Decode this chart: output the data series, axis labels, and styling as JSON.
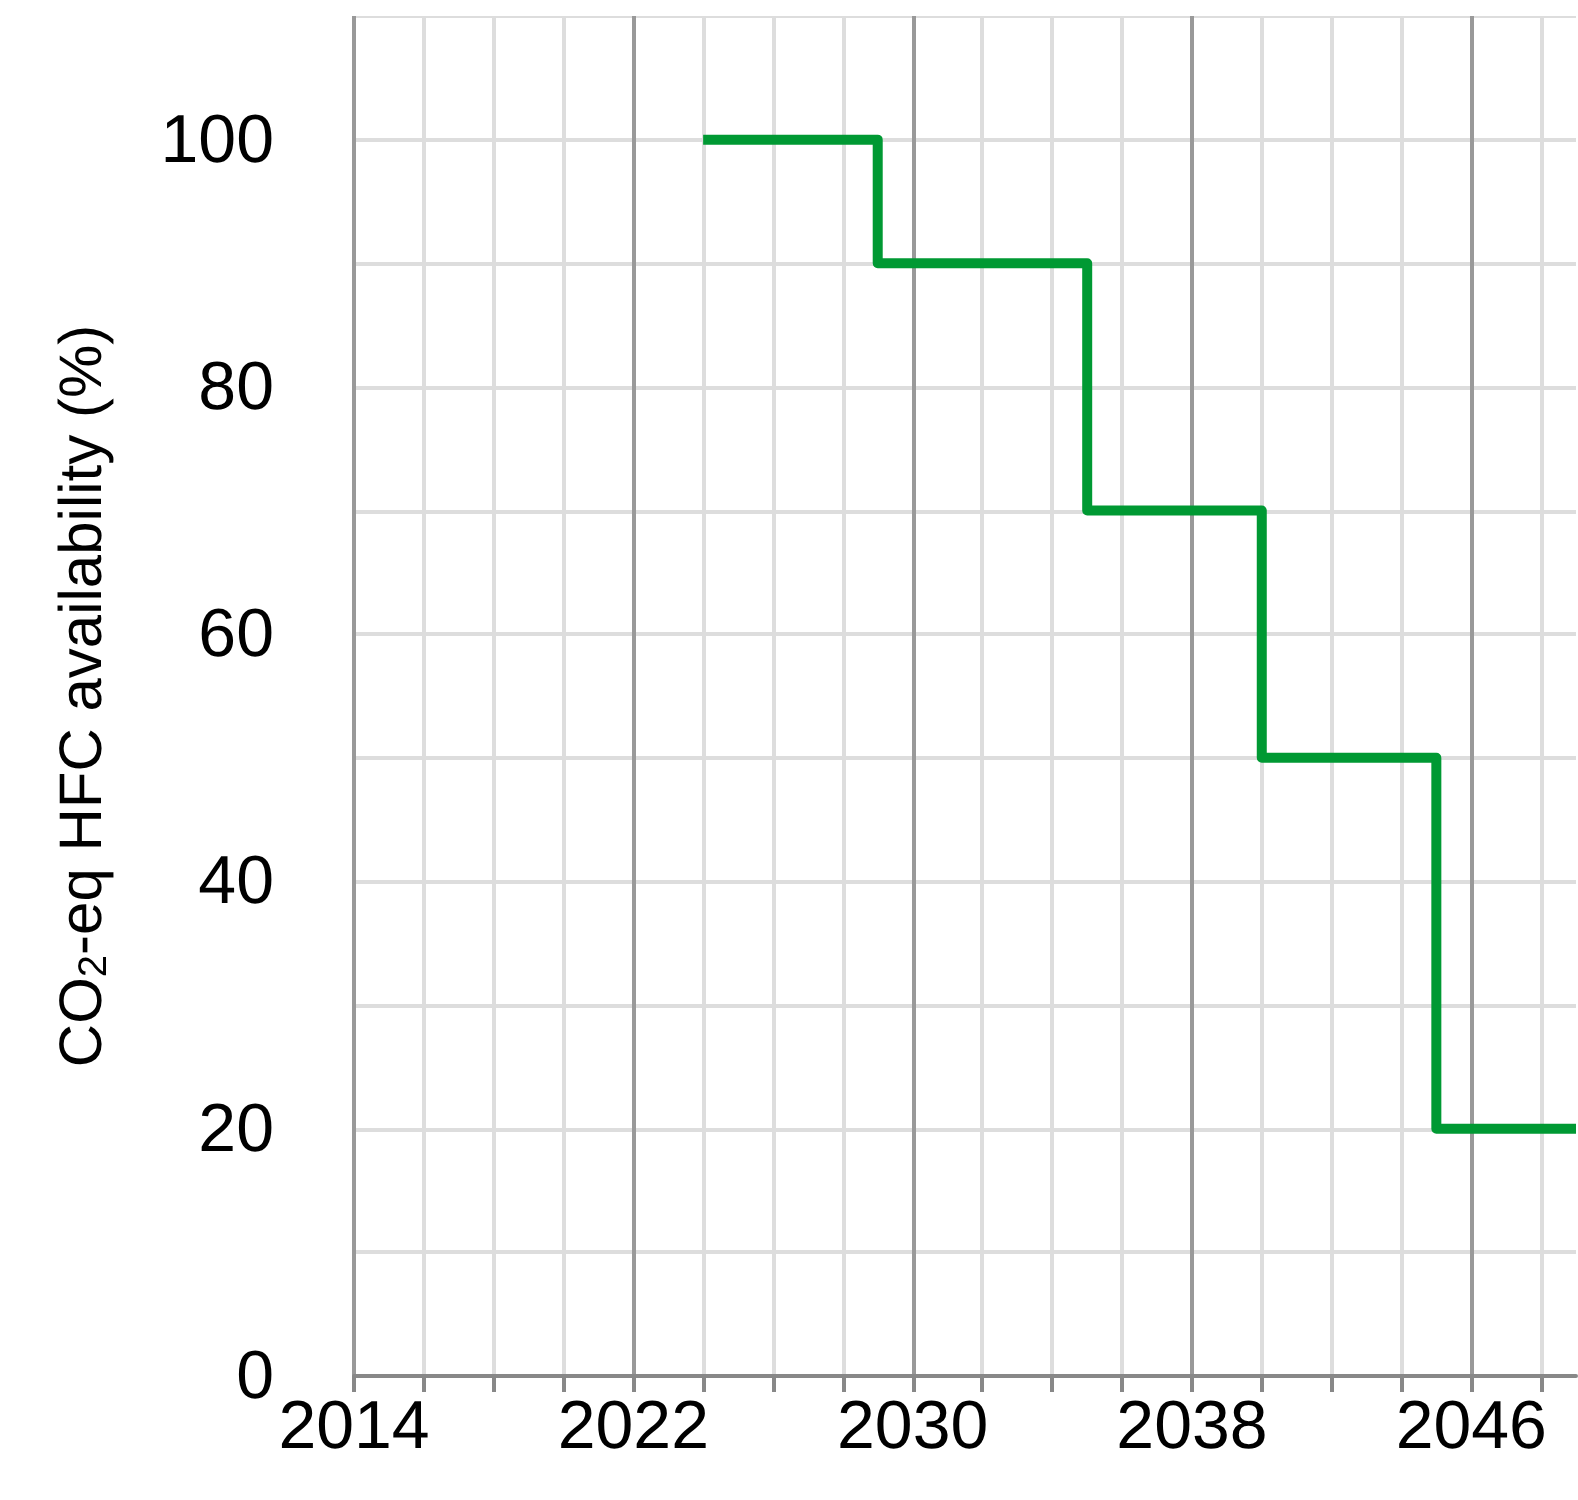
{
  "chart_data": {
    "type": "step",
    "ylabel": "CO$_{2}$-eq HFC availability (%)",
    "x": [
      2024,
      2029,
      2035,
      2040,
      2045,
      2049
    ],
    "series": [
      {
        "color": "#009933",
        "values": [
          100,
          90,
          70,
          50,
          20,
          20
        ]
      }
    ],
    "xlim": [
      2014,
      2049
    ],
    "xticks": [
      2014,
      {
        "value": 2016,
        "label": null
      },
      {
        "value": 2018,
        "label": null
      },
      {
        "value": 2020,
        "label": null
      },
      2022,
      {
        "value": 2024,
        "label": null
      },
      {
        "value": 2026,
        "label": null
      },
      {
        "value": 2028,
        "label": null
      },
      2030,
      {
        "value": 2032,
        "label": null
      },
      {
        "value": 2034,
        "label": null
      },
      {
        "value": 2036,
        "label": null
      },
      2038,
      {
        "value": 2040,
        "label": null
      },
      {
        "value": 2042,
        "label": null
      },
      {
        "value": 2044,
        "label": null
      },
      2046,
      {
        "value": 2048,
        "label": null
      }
    ],
    "ylim": [
      0,
      110
    ],
    "yticks": [
      0,
      {
        "value": 10,
        "label": null
      },
      20,
      {
        "value": 30,
        "label": null
      },
      40,
      {
        "value": 50,
        "label": null
      },
      60,
      {
        "value": 70,
        "label": null
      },
      80,
      {
        "value": 90,
        "label": null
      },
      100,
      {
        "value": 110,
        "label": null
      }
    ],
    "grid": true,
    "marker": "none",
    "line_style": "solid"
  }
}
